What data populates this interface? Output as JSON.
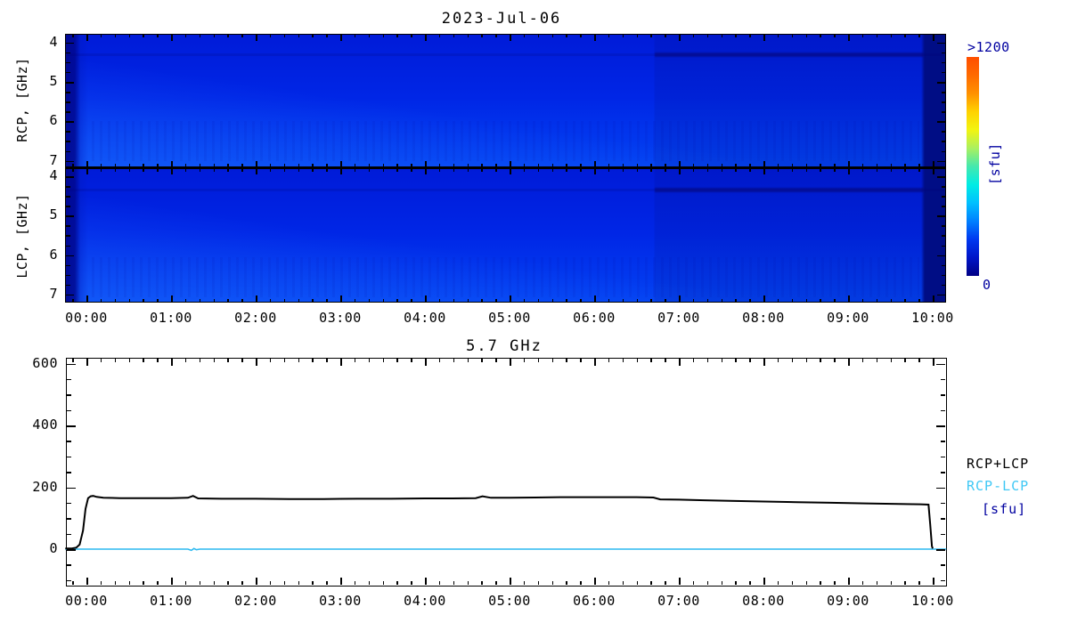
{
  "page": {
    "background": "#ffffff"
  },
  "spectrogram": {
    "title": "2023-Jul-06",
    "panels": [
      {
        "id": "rcp",
        "ylabel": "RCP, [GHz]",
        "freq_ticks": [
          4,
          5,
          6,
          7
        ]
      },
      {
        "id": "lcp",
        "ylabel": "LCP, [GHz]",
        "freq_ticks": [
          4,
          5,
          6,
          7
        ]
      }
    ],
    "time_tick_labels": [
      "00:00",
      "01:00",
      "02:00",
      "03:00",
      "04:00",
      "05:00",
      "06:00",
      "07:00",
      "08:00",
      "09:00",
      "10:00"
    ],
    "colorbar": {
      "top_label": ">1200",
      "bottom_label": "0",
      "unit_label": "[sfu]",
      "label_color": "#0000a0",
      "gradient_colors": [
        "#ff4e00",
        "#ff6a00",
        "#ff9100",
        "#ffd200",
        "#f2f411",
        "#aaf060",
        "#45e8ae",
        "#00ece4",
        "#00c0ff",
        "#0080ff",
        "#0038f0",
        "#0015c8",
        "#000085"
      ]
    }
  },
  "timeseries": {
    "title": "5.7 GHz",
    "legend": [
      {
        "label": "RCP+LCP",
        "color": "#000000"
      },
      {
        "label": "RCP-LCP",
        "color": "#3fc8f5"
      },
      {
        "label": "[sfu]",
        "color": "#0000a0"
      }
    ]
  },
  "chart_data": [
    {
      "type": "heatmap",
      "title": "2023-Jul-06",
      "xlabel_ticks": [
        "00:00",
        "01:00",
        "02:00",
        "03:00",
        "04:00",
        "05:00",
        "06:00",
        "07:00",
        "08:00",
        "09:00",
        "10:00"
      ],
      "x_minor_interval_minutes": 10,
      "panels": [
        "RCP, [GHz]",
        "LCP, [GHz]"
      ],
      "freq_axis_ghz": {
        "ticks": [
          4,
          5,
          6,
          7
        ],
        "range_displayed": [
          3.8,
          7.2
        ],
        "minor_step": 0.25,
        "increasing_downward": true
      },
      "time_range_hours": [
        -0.25,
        10.16
      ],
      "colorbar": {
        "min": 0,
        "max_label": ">1200",
        "unit": "sfu",
        "colormap": "rainbow"
      },
      "approx_background_sfu": 200,
      "features": [
        "quiet-sun nearly uniform blue background in both RCP and LCP panels",
        "dark navy calibration stripe before 00:00 at left edge of both panels",
        "dark navy stripe after about 09:55 at right edge of both panels",
        "slightly brighter blue toward lower frequencies (bottom) and lower-left of each panel",
        "faint dark horizontal interference band near 4.35 GHz, strongest from about 06:45 to 09:55 in both panels",
        "subtle intensity step across all frequencies at about 06:45"
      ]
    },
    {
      "type": "line",
      "title": "5.7 GHz",
      "ylabel_unit": "[sfu]",
      "yticks": [
        0,
        200,
        400,
        600
      ],
      "ylim": [
        -118,
        620
      ],
      "y_minor_interval": 50,
      "x_tick_labels": [
        "00:00",
        "01:00",
        "02:00",
        "03:00",
        "04:00",
        "05:00",
        "06:00",
        "07:00",
        "08:00",
        "09:00",
        "10:00"
      ],
      "x_range_hours": [
        -0.25,
        10.16
      ],
      "x_minor_interval_minutes": 10,
      "series": [
        {
          "name": "RCP+LCP",
          "color": "#000000",
          "points": [
            [
              -0.25,
              2
            ],
            [
              -0.18,
              2
            ],
            [
              -0.12,
              5
            ],
            [
              -0.08,
              15
            ],
            [
              -0.04,
              60
            ],
            [
              -0.01,
              130
            ],
            [
              0.02,
              165
            ],
            [
              0.05,
              171
            ],
            [
              0.08,
              172
            ],
            [
              0.12,
              169
            ],
            [
              0.2,
              166
            ],
            [
              0.4,
              165
            ],
            [
              0.7,
              165
            ],
            [
              1.0,
              165
            ],
            [
              1.2,
              166
            ],
            [
              1.26,
              172
            ],
            [
              1.32,
              164
            ],
            [
              1.6,
              163
            ],
            [
              2.0,
              163
            ],
            [
              2.4,
              162
            ],
            [
              2.8,
              162
            ],
            [
              3.2,
              163
            ],
            [
              3.6,
              163
            ],
            [
              4.0,
              164
            ],
            [
              4.3,
              164
            ],
            [
              4.6,
              165
            ],
            [
              4.68,
              171
            ],
            [
              4.78,
              166
            ],
            [
              5.0,
              166
            ],
            [
              5.3,
              167
            ],
            [
              5.6,
              168
            ],
            [
              5.9,
              168
            ],
            [
              6.2,
              168
            ],
            [
              6.5,
              168
            ],
            [
              6.7,
              167
            ],
            [
              6.78,
              161
            ],
            [
              7.0,
              160
            ],
            [
              7.3,
              158
            ],
            [
              7.6,
              156
            ],
            [
              8.0,
              154
            ],
            [
              8.4,
              152
            ],
            [
              8.8,
              150
            ],
            [
              9.2,
              148
            ],
            [
              9.6,
              146
            ],
            [
              9.85,
              145
            ],
            [
              9.95,
              144
            ],
            [
              9.97,
              80
            ],
            [
              9.99,
              10
            ],
            [
              10.0,
              2
            ]
          ]
        },
        {
          "name": "RCP-LCP",
          "color": "#2cb9f0",
          "points": [
            [
              -0.25,
              0
            ],
            [
              1.2,
              0
            ],
            [
              1.24,
              -4
            ],
            [
              1.27,
              2
            ],
            [
              1.3,
              -2
            ],
            [
              1.34,
              0
            ],
            [
              10.16,
              0
            ]
          ]
        }
      ]
    }
  ]
}
